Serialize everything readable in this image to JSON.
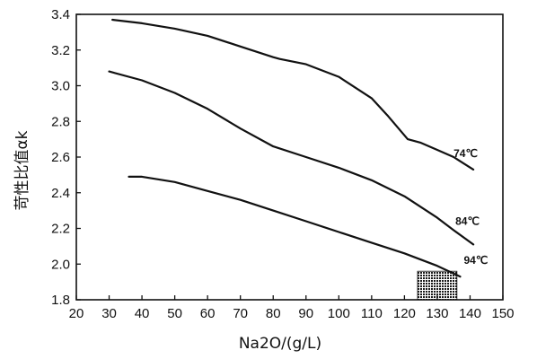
{
  "chart_data": {
    "type": "line",
    "xlabel": "Na2O/(g/L)",
    "ylabel": "苛性比值αk",
    "xlim": [
      20,
      150
    ],
    "ylim": [
      1.8,
      3.4
    ],
    "x_ticks": [
      20,
      30,
      40,
      50,
      60,
      70,
      80,
      90,
      100,
      110,
      120,
      130,
      140,
      150
    ],
    "y_ticks": [
      1.8,
      2.0,
      2.2,
      2.4,
      2.6,
      2.8,
      3.0,
      3.2,
      3.4
    ],
    "grid": false,
    "series": [
      {
        "name": "74℃",
        "x": [
          31,
          40,
          50,
          60,
          70,
          80,
          82,
          90,
          100,
          110,
          115,
          121,
          125,
          130,
          135,
          141
        ],
        "y": [
          3.37,
          3.35,
          3.32,
          3.28,
          3.22,
          3.16,
          3.15,
          3.12,
          3.05,
          2.93,
          2.83,
          2.7,
          2.68,
          2.64,
          2.6,
          2.53
        ]
      },
      {
        "name": "84℃",
        "x": [
          30,
          40,
          50,
          60,
          70,
          80,
          90,
          100,
          110,
          120,
          130,
          135,
          141
        ],
        "y": [
          3.08,
          3.03,
          2.96,
          2.87,
          2.76,
          2.66,
          2.6,
          2.54,
          2.47,
          2.38,
          2.26,
          2.19,
          2.11
        ]
      },
      {
        "name": "94℃",
        "x": [
          36,
          40,
          50,
          60,
          70,
          80,
          90,
          100,
          110,
          120,
          130,
          137
        ],
        "y": [
          2.49,
          2.49,
          2.46,
          2.41,
          2.36,
          2.3,
          2.24,
          2.18,
          2.12,
          2.06,
          1.99,
          1.93
        ]
      }
    ],
    "shaded_region": {
      "x": [
        124,
        136
      ],
      "y": [
        1.8,
        1.96
      ],
      "pattern": "crosshatch"
    }
  }
}
